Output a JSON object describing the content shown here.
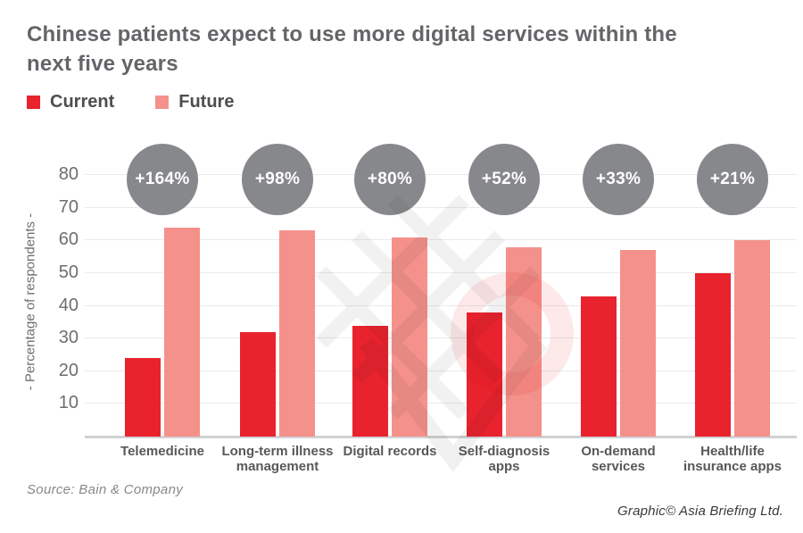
{
  "header": {
    "title_lines": [
      "Chinese patients expect to use more digital services within the",
      "next five years"
    ]
  },
  "legend": {
    "items": [
      {
        "label": "Current",
        "color": "#e8232e"
      },
      {
        "label": "Future",
        "color": "#f4918b"
      }
    ]
  },
  "chart_data": {
    "type": "bar",
    "title": "Chinese patients expect to use more digital services within the next five years",
    "xlabel": "",
    "ylabel": "- Percentage of respondents -",
    "ylim": [
      0,
      80
    ],
    "yticks": [
      10,
      20,
      30,
      40,
      50,
      60,
      70,
      80
    ],
    "grid": true,
    "legend_position": "top-left",
    "categories": [
      [
        "Telemedicine"
      ],
      [
        "Long-term illness",
        "management"
      ],
      [
        "Digital records"
      ],
      [
        "Self-diagnosis",
        "apps"
      ],
      [
        "On-demand",
        "services"
      ],
      [
        "Health/life",
        "insurance apps"
      ]
    ],
    "series": [
      {
        "name": "Current",
        "color": "#e8232e",
        "values": [
          24,
          32,
          34,
          38,
          43,
          50
        ]
      },
      {
        "name": "Future",
        "color": "#f4918b",
        "values": [
          64,
          63,
          61,
          58,
          57,
          60
        ]
      }
    ],
    "growth_badges": [
      "+164%",
      "+98%",
      "+80%",
      "+52%",
      "+33%",
      "+21%"
    ],
    "badge_color": "#87888c"
  },
  "footer": {
    "source": "Source: Bain & Company",
    "credit": "Graphic© Asia Briefing Ltd."
  },
  "colors": {
    "title_text": "#646568",
    "axis_text": "#6d6e71",
    "category_text": "#57585a",
    "gridline": "#eaeaeb",
    "baseline": "#d2d2d4",
    "background": "#ffffff"
  }
}
